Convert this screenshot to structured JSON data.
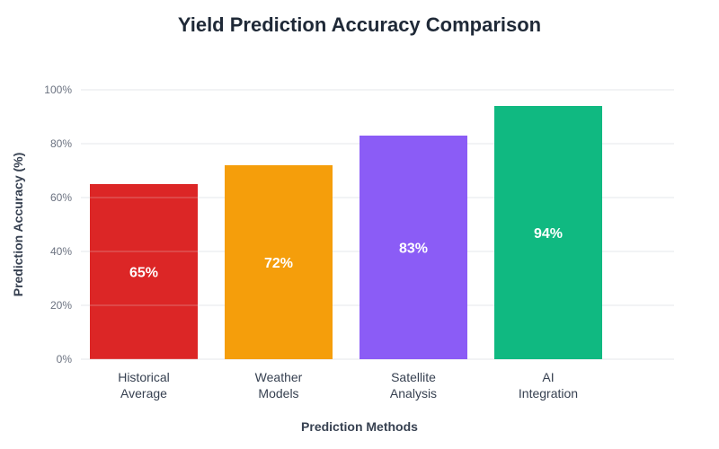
{
  "chart_data": {
    "type": "bar",
    "title": "Yield Prediction Accuracy Comparison",
    "xlabel": "Prediction Methods",
    "ylabel": "Prediction Accuracy (%)",
    "ylim": [
      0,
      100
    ],
    "yticks": [
      0,
      20,
      40,
      60,
      80,
      100
    ],
    "ytick_labels": [
      "0%",
      "20%",
      "40%",
      "60%",
      "80%",
      "100%"
    ],
    "categories": [
      [
        "Historical",
        "Average"
      ],
      [
        "Weather",
        "Models"
      ],
      [
        "Satellite",
        "Analysis"
      ],
      [
        "AI",
        "Integration"
      ]
    ],
    "values": [
      65,
      72,
      83,
      94
    ],
    "value_labels": [
      "65%",
      "72%",
      "83%",
      "94%"
    ],
    "colors": [
      "#dc2626",
      "#f59e0b",
      "#8b5cf6",
      "#10b981"
    ],
    "grid": true,
    "legend": "none"
  }
}
